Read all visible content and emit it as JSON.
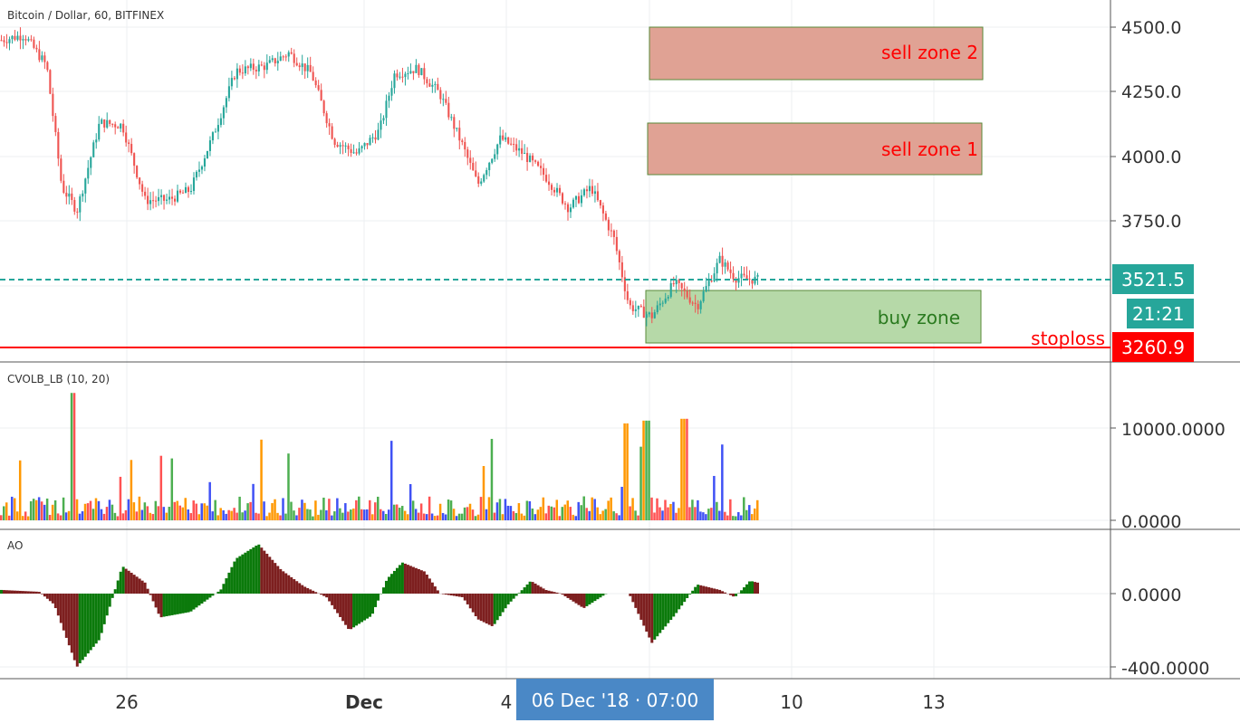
{
  "symbol_title": "Bitcoin / Dollar, 60, BITFINEX",
  "colors": {
    "up": "#26a69a",
    "down": "#ef5350",
    "sell_zone_fill": "#e0a294",
    "buy_zone_fill": "#b6d9a8",
    "last_price": "#26a69a",
    "stoploss": "#ff0000",
    "crosshair_date": "#4a88c6",
    "ao_up": "#0b7a0b",
    "ao_down": "#7d1f1f"
  },
  "price_axis": {
    "ticks": [
      "4500.0",
      "4250.0",
      "4000.0",
      "3750.0"
    ],
    "last_price": "3521.5",
    "countdown": "21:21",
    "stoploss_price": "3260.9"
  },
  "zones": {
    "sell_zone_2": {
      "label": "sell zone 2",
      "low": 4300,
      "high": 4500
    },
    "sell_zone_1": {
      "label": "sell zone 1",
      "low": 3930,
      "high": 4130
    },
    "buy_zone": {
      "label": "buy zone",
      "low": 3270,
      "high": 3475
    },
    "stoploss": {
      "label": "stoploss",
      "price": 3260.9
    }
  },
  "volume_panel": {
    "title": "CVOLB_LB (10, 20)",
    "ticks": [
      "10000.0000",
      "0.0000"
    ]
  },
  "ao_panel": {
    "title": "AO",
    "ticks": [
      "0.0000",
      "-400.0000"
    ]
  },
  "time_axis": {
    "labels": [
      "26",
      "Dec",
      "4",
      "10",
      "13"
    ],
    "crosshair": "06 Dec '18 · 07:00"
  },
  "chart_data": {
    "type": "candlestick",
    "timeframe": "60",
    "x_range": [
      "23 Nov",
      "9 Dec"
    ],
    "price_range": [
      3230,
      4520
    ],
    "approx_price_path": [
      {
        "x": 0.0,
        "close": 4450
      },
      {
        "x": 0.03,
        "close": 4470
      },
      {
        "x": 0.06,
        "close": 4350
      },
      {
        "x": 0.08,
        "close": 3880
      },
      {
        "x": 0.1,
        "close": 3790
      },
      {
        "x": 0.13,
        "close": 4130
      },
      {
        "x": 0.16,
        "close": 4120
      },
      {
        "x": 0.19,
        "close": 3830
      },
      {
        "x": 0.22,
        "close": 3830
      },
      {
        "x": 0.25,
        "close": 3870
      },
      {
        "x": 0.28,
        "close": 4080
      },
      {
        "x": 0.31,
        "close": 4330
      },
      {
        "x": 0.35,
        "close": 4350
      },
      {
        "x": 0.38,
        "close": 4400
      },
      {
        "x": 0.41,
        "close": 4320
      },
      {
        "x": 0.44,
        "close": 4060
      },
      {
        "x": 0.47,
        "close": 4010
      },
      {
        "x": 0.5,
        "close": 4100
      },
      {
        "x": 0.52,
        "close": 4320
      },
      {
        "x": 0.55,
        "close": 4340
      },
      {
        "x": 0.58,
        "close": 4240
      },
      {
        "x": 0.61,
        "close": 4040
      },
      {
        "x": 0.63,
        "close": 3890
      },
      {
        "x": 0.66,
        "close": 4070
      },
      {
        "x": 0.69,
        "close": 4010
      },
      {
        "x": 0.72,
        "close": 3920
      },
      {
        "x": 0.75,
        "close": 3800
      },
      {
        "x": 0.78,
        "close": 3880
      },
      {
        "x": 0.81,
        "close": 3680
      },
      {
        "x": 0.83,
        "close": 3420
      },
      {
        "x": 0.86,
        "close": 3380
      },
      {
        "x": 0.89,
        "close": 3510
      },
      {
        "x": 0.92,
        "close": 3420
      },
      {
        "x": 0.95,
        "close": 3600
      },
      {
        "x": 0.97,
        "close": 3530
      },
      {
        "x": 1.0,
        "close": 3521.5
      }
    ]
  }
}
